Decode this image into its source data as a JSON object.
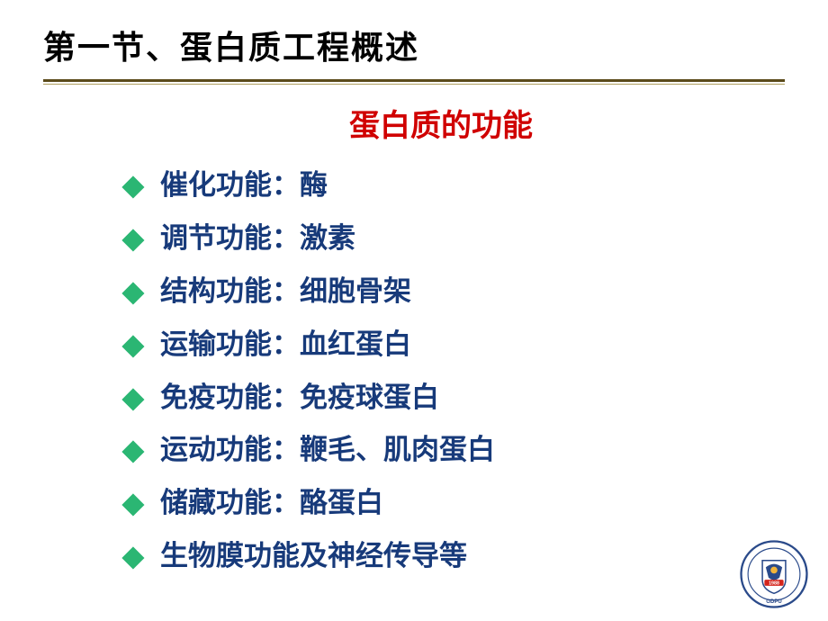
{
  "title": {
    "text": "第一节、蛋白质工程概述",
    "color": "#000000",
    "fontsize": 36
  },
  "rule": {
    "main_color": "#5a4a1a",
    "sub_color": "#b0a060"
  },
  "subtitle": {
    "text": "蛋白质的功能",
    "color": "#d00000",
    "fontsize": 34
  },
  "list": {
    "text_color": "#173a7a",
    "bullet_color": "#2bb673",
    "fontsize": 31,
    "items": [
      "催化功能：酶",
      "调节功能：激素",
      "结构功能：细胞骨架",
      "运输功能：血红蛋白",
      "免疫功能：免疫球蛋白",
      "运动功能：鞭毛、肌肉蛋白",
      "储藏功能：酪蛋白",
      "生物膜功能及神经传导等"
    ]
  },
  "logo": {
    "outer_ring": "#2a4a8a",
    "inner_bg": "#ffffff",
    "shield_blue": "#2a4a8a",
    "shield_accent": "#f2b43a",
    "banner": "#d4251c",
    "banner_text": "1988",
    "bottom_text": "GDPU"
  }
}
